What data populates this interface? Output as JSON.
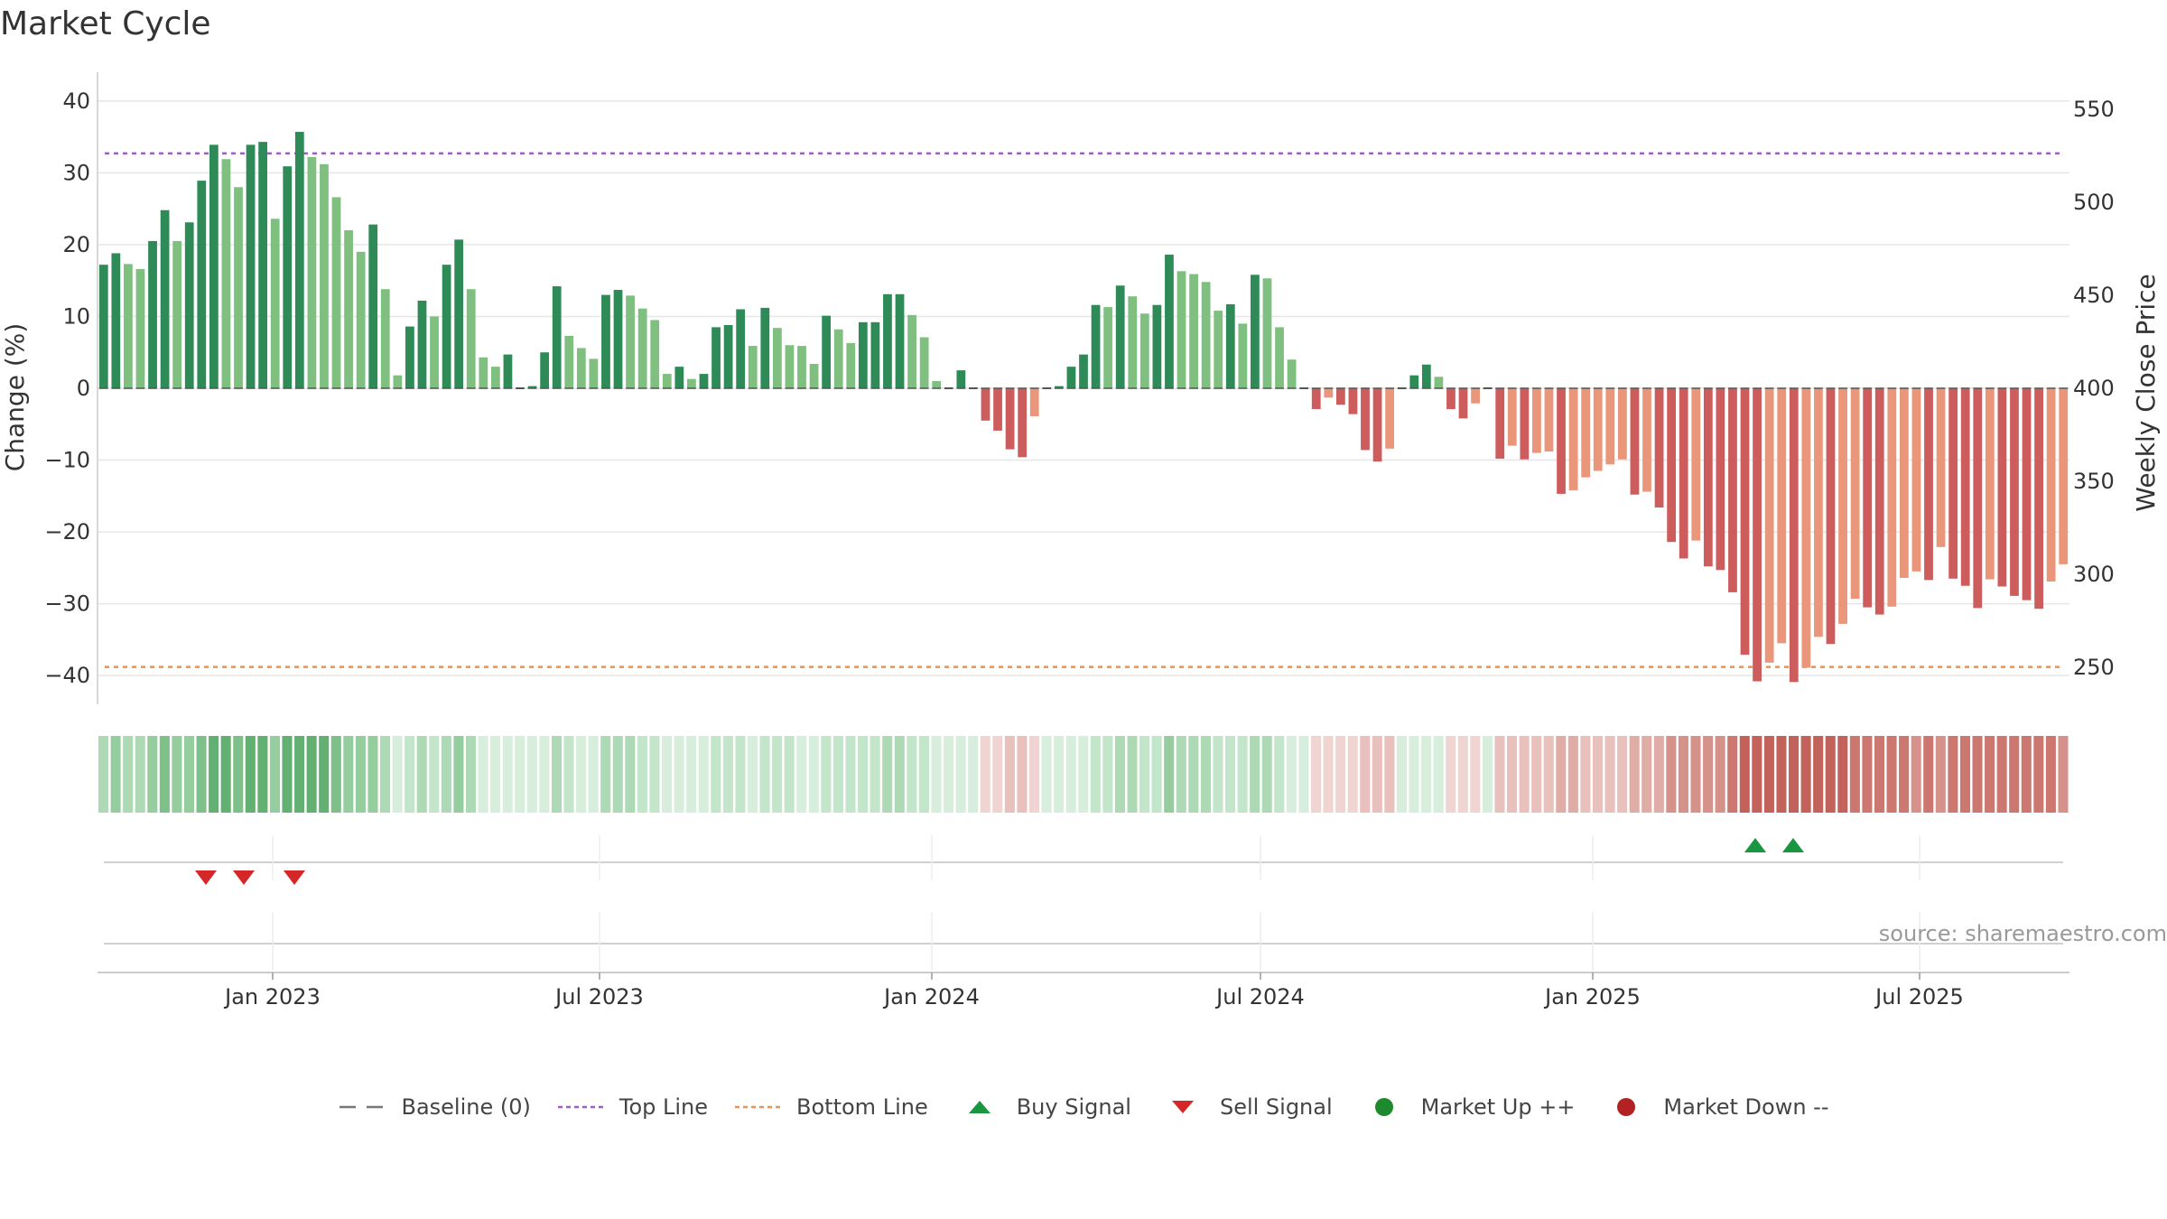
{
  "title": "Market Cycle",
  "source": "source: sharemaestro.com",
  "chart_data": {
    "type": "bar",
    "ylabel": "Change (%)",
    "y2label": "Weekly Close Price",
    "ylim": [
      -44,
      44
    ],
    "y2lim": [
      230,
      570
    ],
    "y_ticks": [
      -40,
      -30,
      -20,
      -10,
      0,
      10,
      20,
      30,
      40
    ],
    "y_tick_labels": [
      "−40",
      "−30",
      "−20",
      "−10",
      "0",
      "10",
      "20",
      "30",
      "40"
    ],
    "y2_ticks": [
      250,
      300,
      350,
      400,
      450,
      500,
      550
    ],
    "y2_tick_labels": [
      "250",
      "300",
      "350",
      "400",
      "450",
      "500",
      "550"
    ],
    "x_start": "2022-09-26",
    "x_end": "2025-09-22",
    "x_ticks": [
      "2023-01-01",
      "2023-07-01",
      "2024-01-01",
      "2024-07-01",
      "2025-01-01",
      "2025-07-01"
    ],
    "x_tick_labels": [
      "Jan 2023",
      "Jul 2023",
      "Jan 2024",
      "Jul 2024",
      "Jan 2025",
      "Jul 2025"
    ],
    "top_line": 32.7,
    "bottom_line": -38.8,
    "baseline": 0,
    "grid": true,
    "legend_position": "bottom-center",
    "values": [
      17.2,
      18.8,
      17.3,
      16.6,
      20.5,
      24.8,
      20.5,
      23.1,
      28.9,
      33.9,
      31.9,
      28.0,
      33.9,
      34.3,
      23.6,
      30.9,
      35.7,
      32.2,
      31.2,
      26.6,
      22.0,
      19.0,
      22.8,
      13.8,
      1.8,
      8.6,
      12.2,
      10.0,
      17.2,
      20.7,
      13.8,
      4.3,
      3.0,
      4.7,
      0.0,
      0.3,
      5.0,
      14.2,
      7.3,
      5.6,
      4.1,
      13.0,
      13.7,
      12.9,
      11.1,
      9.5,
      2.0,
      3.0,
      1.3,
      2.0,
      8.5,
      8.8,
      11.0,
      5.9,
      11.2,
      8.4,
      6.0,
      5.9,
      3.4,
      10.1,
      8.2,
      6.3,
      9.2,
      9.2,
      13.1,
      13.1,
      10.2,
      7.1,
      1.0,
      0.0,
      2.5,
      0.0,
      -4.5,
      -5.9,
      -8.5,
      -9.6,
      -3.9,
      0.0,
      0.3,
      3.0,
      4.7,
      11.6,
      11.3,
      14.3,
      12.8,
      10.4,
      11.6,
      18.6,
      16.3,
      15.9,
      14.8,
      10.8,
      11.7,
      9.0,
      15.8,
      15.3,
      8.5,
      4.0,
      0.0,
      -2.9,
      -1.3,
      -2.3,
      -3.6,
      -8.6,
      -10.2,
      -8.4,
      0.0,
      1.8,
      3.3,
      1.6,
      -2.9,
      -4.2,
      -2.1,
      0.0,
      -9.8,
      -8.0,
      -9.9,
      -9.0,
      -8.8,
      -14.7,
      -14.2,
      -12.4,
      -11.5,
      -10.6,
      -9.9,
      -14.8,
      -14.4,
      -16.6,
      -21.4,
      -23.7,
      -21.2,
      -24.8,
      -25.3,
      -28.4,
      -37.1,
      -40.8,
      -38.2,
      -35.5,
      -40.9,
      -38.9,
      -34.6,
      -35.6,
      -32.8,
      -29.3,
      -30.5,
      -31.5,
      -30.4,
      -26.4,
      -25.5,
      -26.7,
      -22.1,
      -26.5,
      -27.5,
      -30.6,
      -26.6,
      -27.6,
      -28.9,
      -29.5,
      -30.7,
      -26.9,
      -24.5
    ],
    "signals": [
      {
        "type": "Sell Signal",
        "date": "2022-11-25"
      },
      {
        "type": "Sell Signal",
        "date": "2022-12-16"
      },
      {
        "type": "Sell Signal",
        "date": "2023-01-13"
      },
      {
        "type": "Buy Signal",
        "date": "2025-04-01"
      },
      {
        "type": "Buy Signal",
        "date": "2025-04-22"
      }
    ],
    "legend": [
      {
        "label": "Baseline (0)",
        "symbol": "dash",
        "color": "#777777"
      },
      {
        "label": "Top Line",
        "symbol": "dot-line",
        "color": "#9b5fc0"
      },
      {
        "label": "Bottom Line",
        "symbol": "dot-line",
        "color": "#e8935a"
      },
      {
        "label": "Buy Signal",
        "symbol": "triangle-up",
        "color": "#1a9641"
      },
      {
        "label": "Sell Signal",
        "symbol": "triangle-down",
        "color": "#d62728"
      },
      {
        "label": "Market Up ++",
        "symbol": "circle",
        "color": "#1e8a2e"
      },
      {
        "label": "Market Down --",
        "symbol": "circle",
        "color": "#b22222"
      }
    ],
    "colors": {
      "pos_strong": "#2e8b57",
      "pos_light": "#7fbf7f",
      "neg_strong": "#cd5c5c",
      "neg_light": "#e9967a",
      "grid": "#e6e6e6",
      "axis": "#cccccc"
    }
  }
}
